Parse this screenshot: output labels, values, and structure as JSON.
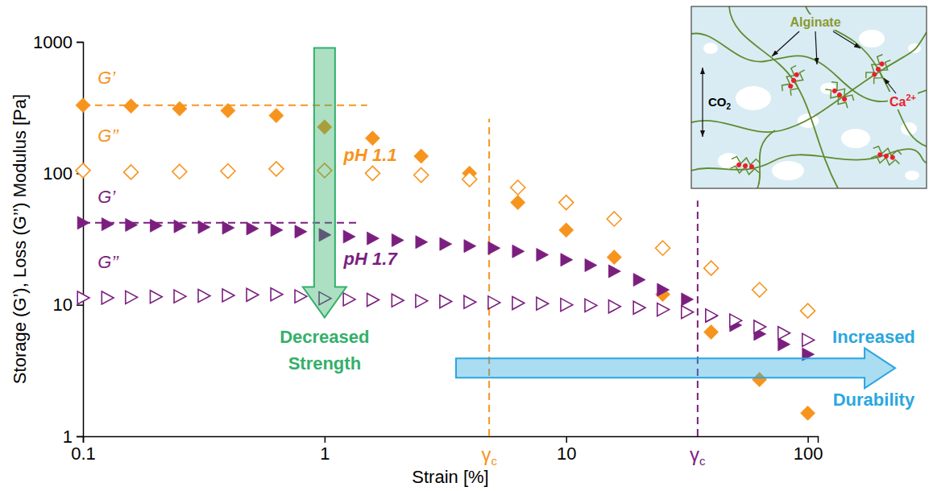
{
  "chart_data": {
    "type": "scatter",
    "log": true,
    "grid": false,
    "x_label": "Strain [%]",
    "y_label": "Storage (G’), Loss (G’’) Modulus  [Pa]",
    "xlim": [
      0.1,
      110
    ],
    "ylim": [
      1,
      1000
    ],
    "xticks": [
      0.1,
      1,
      10,
      100
    ],
    "yticks": [
      1,
      10,
      100,
      1000
    ],
    "series": [
      {
        "color": "#f7941d",
        "marker": "diamond",
        "x": [
          0.1,
          0.158,
          0.251,
          0.398,
          0.631,
          1,
          1.58,
          2.51,
          3.98,
          6.31,
          10,
          15.8,
          25.1,
          39.8,
          63.1,
          100
        ],
        "values": [
          330,
          325,
          310,
          300,
          275,
          225,
          185,
          135,
          100,
          60,
          37,
          23,
          12,
          6.2,
          2.7,
          1.5
        ]
      },
      {
        "color": "#f7941d",
        "marker": "diamond-open",
        "x": [
          0.1,
          0.158,
          0.251,
          0.398,
          0.631,
          1,
          1.58,
          2.51,
          3.98,
          6.31,
          10,
          15.8,
          25.1,
          39.8,
          63.1,
          100
        ],
        "values": [
          105,
          102,
          103,
          104,
          108,
          105,
          100,
          97,
          90,
          78,
          60,
          45,
          27,
          19,
          13,
          9
        ]
      },
      {
        "color": "#7b1f7f",
        "marker": "triangle-right",
        "x": [
          0.1,
          0.126,
          0.158,
          0.2,
          0.251,
          0.316,
          0.398,
          0.501,
          0.631,
          0.794,
          1,
          1.26,
          1.58,
          2,
          2.51,
          3.16,
          3.98,
          5.01,
          6.31,
          7.94,
          10,
          12.6,
          15.8,
          20,
          25.1,
          31.6,
          39.8,
          50.1,
          63.1,
          79.4,
          100
        ],
        "values": [
          42,
          41,
          40.5,
          40,
          39.5,
          39,
          38.5,
          38,
          37,
          36,
          34,
          33,
          32,
          31,
          30,
          29,
          28,
          27,
          25.5,
          24,
          22,
          20,
          18,
          15.5,
          13,
          11,
          8.2,
          7,
          6,
          5,
          4.2
        ]
      },
      {
        "color": "#7b1f7f",
        "marker": "triangle-right-open",
        "x": [
          0.1,
          0.126,
          0.158,
          0.2,
          0.251,
          0.316,
          0.398,
          0.501,
          0.631,
          0.794,
          1,
          1.26,
          1.58,
          2,
          2.51,
          3.16,
          3.98,
          5.01,
          6.31,
          7.94,
          10,
          12.6,
          15.8,
          20,
          25.1,
          31.6,
          39.8,
          50.1,
          63.1,
          79.4,
          100
        ],
        "values": [
          11.3,
          11.3,
          11.4,
          11.5,
          11.6,
          11.7,
          11.8,
          11.9,
          12,
          11.6,
          11.2,
          11,
          10.9,
          10.8,
          10.7,
          10.6,
          10.5,
          10.4,
          10.3,
          10.2,
          10,
          9.9,
          9.7,
          9.5,
          9.2,
          8.8,
          8.3,
          7.6,
          6.8,
          6.1,
          5.4
        ]
      }
    ],
    "reference_lines": [
      {
        "y": 330,
        "x": [
          0.1,
          1.5
        ],
        "color": "#f7941d",
        "line_style": "dashed"
      },
      {
        "y": 42,
        "x": [
          0.1,
          1.4
        ],
        "color": "#7b1f7f",
        "line_style": "dashed"
      }
    ],
    "vertical_lines": [
      {
        "x": 4.8,
        "y": [
          1,
          260
        ],
        "color": "#f7941d",
        "line_style": "dashed",
        "label": "γ",
        "subscript": "c"
      },
      {
        "x": 35,
        "y": [
          1,
          62
        ],
        "color": "#7b1f7f",
        "line_style": "dashed",
        "label": "γ",
        "subscript": "c"
      }
    ],
    "series_labels": [
      {
        "text": "G’",
        "x": 0.115,
        "y": 480,
        "color": "#f7941d"
      },
      {
        "text": "G’’",
        "x": 0.115,
        "y": 175,
        "color": "#f7941d"
      },
      {
        "text": "G’",
        "x": 0.115,
        "y": 60,
        "color": "#7b1f7f"
      },
      {
        "text": "G’’",
        "x": 0.115,
        "y": 19,
        "color": "#7b1f7f"
      }
    ],
    "group_labels": [
      {
        "text": "pH 1.1",
        "x": 1.2,
        "y": 125,
        "color": "#f7941d"
      },
      {
        "text": "pH 1.7",
        "x": 1.2,
        "y": 20,
        "color": "#7b1f7f"
      }
    ],
    "arrows": [
      {
        "text": [
          "Decreased",
          "Strength"
        ],
        "x": [
          1,
          1
        ],
        "y": [
          900,
          8
        ],
        "color": "#33b06a"
      },
      {
        "text": [
          "Increased",
          "Durability"
        ],
        "x": [
          3.5,
          230
        ],
        "y": [
          3.3,
          3.3
        ],
        "color": "#2aa7de"
      }
    ],
    "inset": {
      "alginate_label": "Alginate",
      "ion_label": {
        "text": "Ca",
        "superscript": "2+"
      },
      "gas_label": {
        "text": "CO",
        "subscript": "2"
      }
    }
  }
}
